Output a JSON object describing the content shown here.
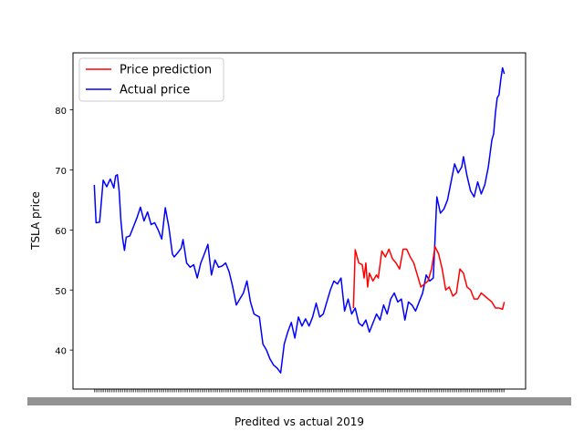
{
  "chart_data": {
    "type": "line",
    "title": "",
    "xlabel": "Predited vs actual 2019",
    "ylabel": "TSLA price",
    "ylim": [
      33.5,
      89.5
    ],
    "yticks": [
      40,
      50,
      60,
      70,
      80
    ],
    "x_count": 260,
    "x_tick_labels_note": "",
    "legend": {
      "location": "upper left",
      "entries": [
        "Price prediction",
        "Actual price"
      ]
    },
    "grid": false,
    "colors": {
      "prediction": "#ff0000",
      "actual": "#0000ff"
    },
    "series": [
      {
        "name": "Actual price",
        "color": "#0000ff",
        "knots": [
          [
            0,
            67.5
          ],
          [
            1,
            61.2
          ],
          [
            3,
            61.3
          ],
          [
            5,
            68.3
          ],
          [
            7,
            67.2
          ],
          [
            9,
            68.5
          ],
          [
            11,
            67.0
          ],
          [
            12,
            69.0
          ],
          [
            13,
            69.2
          ],
          [
            14,
            66.5
          ],
          [
            15,
            61.5
          ],
          [
            16,
            58.5
          ],
          [
            17,
            56.6
          ],
          [
            18,
            58.8
          ],
          [
            20,
            59.0
          ],
          [
            22,
            60.5
          ],
          [
            24,
            62.0
          ],
          [
            26,
            63.8
          ],
          [
            28,
            61.5
          ],
          [
            30,
            63.0
          ],
          [
            32,
            60.9
          ],
          [
            34,
            61.2
          ],
          [
            36,
            60.0
          ],
          [
            38,
            58.5
          ],
          [
            40,
            63.7
          ],
          [
            42,
            60.5
          ],
          [
            44,
            56.0
          ],
          [
            45,
            55.5
          ],
          [
            47,
            56.2
          ],
          [
            49,
            57.0
          ],
          [
            50,
            58.4
          ],
          [
            52,
            54.5
          ],
          [
            54,
            53.8
          ],
          [
            56,
            54.2
          ],
          [
            58,
            52.0
          ],
          [
            60,
            54.5
          ],
          [
            62,
            56.0
          ],
          [
            64,
            57.6
          ],
          [
            66,
            52.5
          ],
          [
            68,
            55.0
          ],
          [
            70,
            53.8
          ],
          [
            72,
            54.0
          ],
          [
            74,
            54.5
          ],
          [
            76,
            53.0
          ],
          [
            78,
            50.5
          ],
          [
            80,
            47.5
          ],
          [
            82,
            48.5
          ],
          [
            84,
            49.5
          ],
          [
            86,
            51.5
          ],
          [
            88,
            48.0
          ],
          [
            90,
            46.0
          ],
          [
            93,
            45.5
          ],
          [
            95,
            41.0
          ],
          [
            97,
            40.0
          ],
          [
            99,
            38.5
          ],
          [
            101,
            37.5
          ],
          [
            103,
            37.0
          ],
          [
            105,
            36.2
          ],
          [
            107,
            41.0
          ],
          [
            109,
            43.0
          ],
          [
            111,
            44.6
          ],
          [
            113,
            42.0
          ],
          [
            115,
            45.5
          ],
          [
            117,
            44.0
          ],
          [
            119,
            45.2
          ],
          [
            121,
            44.0
          ],
          [
            123,
            45.5
          ],
          [
            125,
            47.8
          ],
          [
            127,
            45.5
          ],
          [
            129,
            46.0
          ],
          [
            131,
            48.0
          ],
          [
            133,
            50.0
          ],
          [
            135,
            51.5
          ],
          [
            137,
            51.0
          ],
          [
            139,
            52.0
          ],
          [
            141,
            46.5
          ],
          [
            143,
            48.5
          ],
          [
            145,
            46.0
          ],
          [
            147,
            47.0
          ],
          [
            149,
            44.5
          ],
          [
            151,
            44.0
          ],
          [
            153,
            45.0
          ],
          [
            155,
            43.0
          ],
          [
            157,
            44.5
          ],
          [
            159,
            46.0
          ],
          [
            161,
            45.0
          ],
          [
            163,
            47.5
          ],
          [
            165,
            46.0
          ],
          [
            167,
            48.5
          ],
          [
            169,
            49.5
          ],
          [
            171,
            48.0
          ],
          [
            173,
            48.5
          ],
          [
            175,
            45.0
          ],
          [
            177,
            48.0
          ],
          [
            179,
            47.5
          ],
          [
            181,
            46.5
          ],
          [
            183,
            48.0
          ],
          [
            185,
            49.5
          ],
          [
            187,
            52.5
          ],
          [
            189,
            51.5
          ],
          [
            191,
            52.0
          ],
          [
            193,
            65.5
          ],
          [
            195,
            62.8
          ],
          [
            197,
            63.5
          ],
          [
            199,
            65.0
          ],
          [
            201,
            68.0
          ],
          [
            203,
            71.0
          ],
          [
            205,
            69.5
          ],
          [
            207,
            70.5
          ],
          [
            208,
            72.2
          ],
          [
            210,
            69.0
          ],
          [
            212,
            66.5
          ],
          [
            214,
            65.5
          ],
          [
            216,
            68.0
          ],
          [
            218,
            66.0
          ],
          [
            220,
            67.5
          ],
          [
            222,
            70.5
          ],
          [
            224,
            75.0
          ],
          [
            225,
            76.0
          ],
          [
            226,
            79.5
          ],
          [
            227,
            82.0
          ],
          [
            228,
            82.5
          ],
          [
            229,
            85.0
          ],
          [
            230,
            87.0
          ],
          [
            231,
            86.0
          ]
        ]
      },
      {
        "name": "Price prediction",
        "color": "#ff0000",
        "knots": [
          [
            146,
            47.0
          ],
          [
            147,
            56.7
          ],
          [
            149,
            54.5
          ],
          [
            151,
            54.2
          ],
          [
            152,
            52.0
          ],
          [
            153,
            54.5
          ],
          [
            154,
            50.5
          ],
          [
            155,
            52.8
          ],
          [
            157,
            51.5
          ],
          [
            159,
            52.5
          ],
          [
            160,
            52.0
          ],
          [
            162,
            56.5
          ],
          [
            164,
            55.5
          ],
          [
            166,
            56.8
          ],
          [
            168,
            55.2
          ],
          [
            170,
            54.5
          ],
          [
            172,
            53.5
          ],
          [
            174,
            56.8
          ],
          [
            176,
            56.8
          ],
          [
            178,
            55.5
          ],
          [
            180,
            54.5
          ],
          [
            182,
            52.5
          ],
          [
            184,
            50.5
          ],
          [
            186,
            51.0
          ],
          [
            188,
            51.5
          ],
          [
            190,
            53.5
          ],
          [
            192,
            57.2
          ],
          [
            194,
            56.0
          ],
          [
            196,
            53.5
          ],
          [
            198,
            50.0
          ],
          [
            200,
            50.5
          ],
          [
            202,
            49.0
          ],
          [
            204,
            49.5
          ],
          [
            206,
            53.5
          ],
          [
            208,
            52.8
          ],
          [
            210,
            50.5
          ],
          [
            212,
            50.0
          ],
          [
            214,
            48.5
          ],
          [
            216,
            48.5
          ],
          [
            218,
            49.5
          ],
          [
            220,
            49.0
          ],
          [
            222,
            48.5
          ],
          [
            224,
            48.0
          ],
          [
            226,
            47.0
          ],
          [
            228,
            47.0
          ],
          [
            230,
            46.8
          ],
          [
            231,
            48.0
          ]
        ]
      }
    ]
  }
}
